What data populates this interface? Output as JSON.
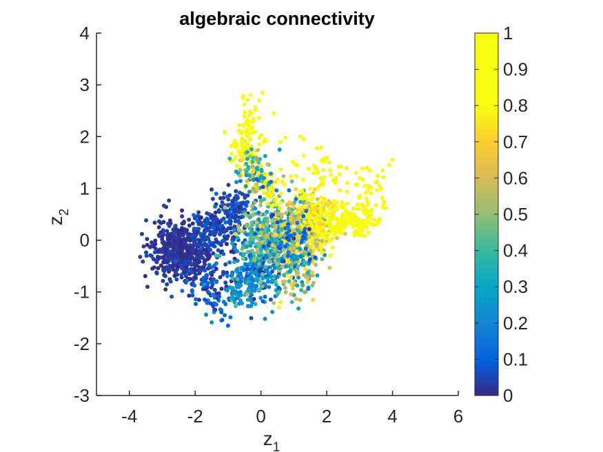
{
  "chart_data": {
    "type": "scatter",
    "title": "algebraic connectivity",
    "xlabel": {
      "base": "z",
      "sub": "1"
    },
    "ylabel": {
      "base": "z",
      "sub": "2"
    },
    "xlim": [
      -5,
      6
    ],
    "ylim": [
      -3,
      4
    ],
    "xticks": [
      -4,
      -2,
      0,
      2,
      4,
      6
    ],
    "yticks": [
      -3,
      -2,
      -1,
      0,
      1,
      2,
      3,
      4
    ],
    "colorbar": {
      "colormap": "parula",
      "range": [
        0,
        1
      ],
      "ticks": [
        0,
        0.1,
        0.2,
        0.3,
        0.4,
        0.5,
        0.6,
        0.7,
        0.8,
        0.9,
        1
      ],
      "tick_labels": [
        "0",
        "0.1",
        "0.2",
        "0.3",
        "0.4",
        "0.5",
        "0.6",
        "0.7",
        "0.8",
        "0.9",
        "1"
      ]
    },
    "clusters": [
      {
        "cx": -2.4,
        "cy": -0.2,
        "sx": 0.45,
        "sy": 0.3,
        "c": 0.02,
        "cs": 0.02,
        "n": 500
      },
      {
        "cx": -1.3,
        "cy": 0.25,
        "sx": 0.4,
        "sy": 0.25,
        "c": 0.05,
        "cs": 0.03,
        "n": 180
      },
      {
        "cx": -0.8,
        "cy": 0.65,
        "sx": 0.3,
        "sy": 0.2,
        "c": 0.06,
        "cs": 0.03,
        "n": 80
      },
      {
        "cx": -1.6,
        "cy": -0.75,
        "sx": 0.45,
        "sy": 0.2,
        "c": 0.08,
        "cs": 0.05,
        "n": 80
      },
      {
        "cx": -1.4,
        "cy": -1.2,
        "sx": 0.2,
        "sy": 0.2,
        "c": 0.12,
        "cs": 0.05,
        "n": 30
      },
      {
        "cx": -0.1,
        "cy": -0.6,
        "sx": 0.4,
        "sy": 0.3,
        "c": 0.2,
        "cs": 0.08,
        "n": 260
      },
      {
        "cx": 0.4,
        "cy": 0.1,
        "sx": 0.55,
        "sy": 0.4,
        "c": 0.42,
        "cs": 0.12,
        "n": 420
      },
      {
        "cx": 1.3,
        "cy": 0.25,
        "sx": 0.4,
        "sy": 0.3,
        "c": 0.62,
        "cs": 0.12,
        "n": 230
      },
      {
        "cx": 1.8,
        "cy": 0.4,
        "sx": 0.3,
        "sy": 0.25,
        "c": 0.8,
        "cs": 0.08,
        "n": 140
      },
      {
        "cx": 2.7,
        "cy": 0.35,
        "sx": 0.4,
        "sy": 0.15,
        "c": 0.97,
        "cs": 0.02,
        "n": 140
      },
      {
        "cx": 3.3,
        "cy": 0.9,
        "sx": 0.3,
        "sy": 0.25,
        "c": 0.96,
        "cs": 0.02,
        "n": 35
      },
      {
        "cx": 1.8,
        "cy": 1.2,
        "sx": 0.55,
        "sy": 0.25,
        "c": 0.95,
        "cs": 0.04,
        "n": 60
      },
      {
        "cx": -0.45,
        "cy": 1.85,
        "sx": 0.25,
        "sy": 0.25,
        "c": 0.85,
        "cs": 0.06,
        "n": 90
      },
      {
        "cx": -0.35,
        "cy": 2.4,
        "sx": 0.12,
        "sy": 0.25,
        "c": 0.96,
        "cs": 0.03,
        "n": 25
      },
      {
        "cx": 0.15,
        "cy": 1.1,
        "sx": 0.25,
        "sy": 0.2,
        "c": 0.8,
        "cs": 0.06,
        "n": 60
      },
      {
        "cx": -0.2,
        "cy": 1.3,
        "sx": 0.3,
        "sy": 0.2,
        "c": 0.4,
        "cs": 0.15,
        "n": 70
      },
      {
        "cx": 1.1,
        "cy": -0.5,
        "sx": 0.35,
        "sy": 0.25,
        "c": 0.45,
        "cs": 0.15,
        "n": 80
      },
      {
        "cx": 1.1,
        "cy": -0.85,
        "sx": 0.2,
        "sy": 0.2,
        "c": 0.62,
        "cs": 0.15,
        "n": 25
      },
      {
        "cx": -0.6,
        "cy": -0.95,
        "sx": 0.25,
        "sy": 0.2,
        "c": 0.25,
        "cs": 0.08,
        "n": 60
      },
      {
        "cx": 0.9,
        "cy": 0.05,
        "sx": 0.4,
        "sy": 0.25,
        "c": 0.12,
        "cs": 0.04,
        "n": 50
      }
    ],
    "points": [
      [
        -3.3,
        -0.55,
        0.02
      ],
      [
        -3.45,
        -0.9,
        0.02
      ],
      [
        -2.9,
        -0.95,
        0.02
      ],
      [
        0.4,
        2.45,
        0.85
      ],
      [
        0.05,
        2.85,
        0.95
      ],
      [
        -0.05,
        2.7,
        0.95
      ],
      [
        4.0,
        1.55,
        0.99
      ],
      [
        3.9,
        1.45,
        0.99
      ],
      [
        3.7,
        1.35,
        0.98
      ],
      [
        2.1,
        1.35,
        0.97
      ],
      [
        2.9,
        1.3,
        0.98
      ],
      [
        3.0,
        1.2,
        0.98
      ],
      [
        0.6,
        1.9,
        0.97
      ],
      [
        0.75,
        1.98,
        0.97
      ],
      [
        1.2,
        2.0,
        0.96
      ],
      [
        1.3,
        1.95,
        0.96
      ],
      [
        0.6,
        -1.2,
        0.75
      ],
      [
        0.55,
        -1.3,
        0.8
      ],
      [
        0.5,
        -1.05,
        0.4
      ],
      [
        -1.2,
        -1.55,
        0.1
      ],
      [
        -1.0,
        -1.65,
        0.1
      ],
      [
        -1.1,
        -1.45,
        0.12
      ],
      [
        -0.8,
        -1.2,
        0.3
      ],
      [
        -0.4,
        -1.05,
        0.55
      ]
    ]
  }
}
